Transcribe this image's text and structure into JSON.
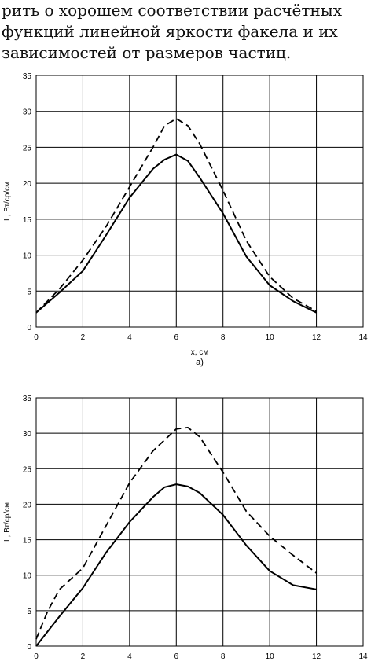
{
  "text": {
    "lines": [
      "рить о хорошем соответствии расчётных",
      "функций линейной яркости факела и их",
      "зависимостей от размеров частиц."
    ]
  },
  "chart_data": [
    {
      "type": "line",
      "xlabel": "x, см",
      "ylabel": "L, Вт/ср/см",
      "caption": "а)",
      "xlim": [
        0,
        14
      ],
      "ylim": [
        0,
        35
      ],
      "xticks": [
        0,
        2,
        4,
        6,
        8,
        10,
        12,
        14
      ],
      "yticks": [
        0,
        5,
        10,
        15,
        20,
        25,
        30,
        35
      ],
      "grid": true,
      "series": [
        {
          "style": "solid",
          "x": [
            0,
            1,
            2,
            3,
            4,
            5,
            5.5,
            6,
            6.5,
            7,
            8,
            9,
            10,
            11,
            12
          ],
          "y": [
            2,
            4.8,
            7.8,
            12.8,
            18,
            22,
            23.3,
            24,
            23.1,
            20.8,
            15.8,
            9.8,
            5.8,
            3.6,
            2
          ]
        },
        {
          "style": "dashed",
          "x": [
            0,
            1,
            2,
            3,
            4,
            5,
            5.5,
            6,
            6.5,
            7,
            8,
            9,
            10,
            11,
            12
          ],
          "y": [
            2,
            5.3,
            9.3,
            14,
            19.5,
            25,
            28,
            29,
            28,
            25.5,
            19,
            12,
            7,
            4,
            2.2
          ]
        }
      ]
    },
    {
      "type": "line",
      "xlabel": "",
      "ylabel": "L, Вт/ср/см",
      "caption": "",
      "xlim": [
        0,
        14
      ],
      "ylim": [
        0,
        35
      ],
      "xticks": [
        0,
        2,
        4,
        6,
        8,
        10,
        12,
        14
      ],
      "yticks": [
        0,
        5,
        10,
        15,
        20,
        25,
        30,
        35
      ],
      "grid": true,
      "series": [
        {
          "style": "solid",
          "x": [
            0,
            1,
            2,
            3,
            4,
            5,
            5.5,
            6,
            6.5,
            7,
            8,
            9,
            10,
            11,
            12
          ],
          "y": [
            0,
            4.2,
            8.2,
            13.2,
            17.5,
            21,
            22.4,
            22.8,
            22.5,
            21.6,
            18.5,
            14.2,
            10.6,
            8.6,
            8
          ]
        },
        {
          "style": "dashed",
          "x": [
            0,
            0.5,
            1,
            2,
            3,
            4,
            5,
            6,
            6.5,
            7,
            8,
            9,
            10,
            11,
            12
          ],
          "y": [
            1,
            5,
            8,
            11,
            17,
            23,
            27.5,
            30.6,
            30.8,
            29.5,
            24.5,
            19,
            15.5,
            12.8,
            10.3
          ]
        }
      ]
    }
  ]
}
